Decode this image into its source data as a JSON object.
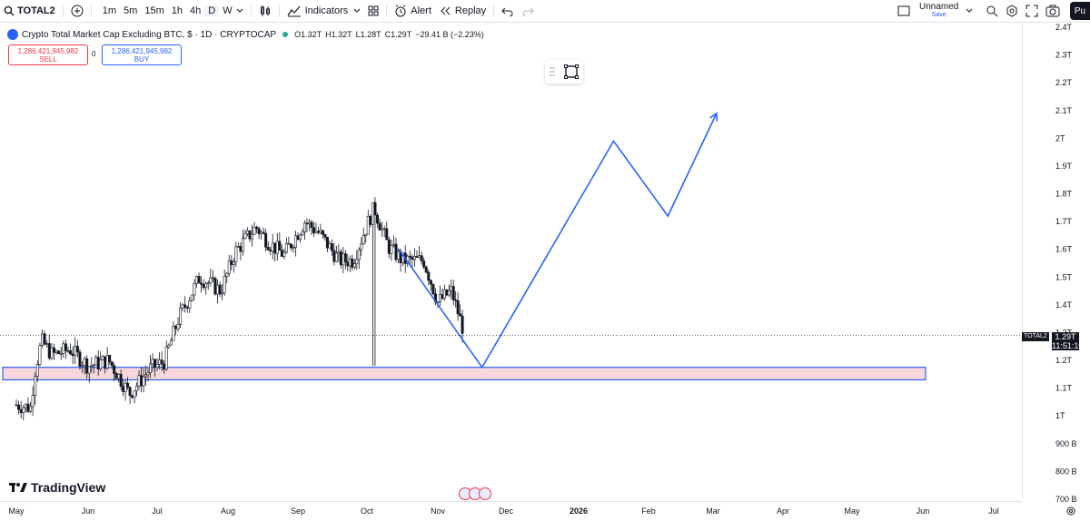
{
  "toolbar": {
    "symbol": "TOTAL2",
    "intervals": [
      "1m",
      "5m",
      "15m",
      "1h",
      "4h",
      "D",
      "W"
    ],
    "active_interval": "D",
    "indicators_label": "Indicators",
    "alert_label": "Alert",
    "replay_label": "Replay",
    "layout_name": "Unnamed",
    "layout_status": "Save",
    "publish_label": "Pu"
  },
  "legend": {
    "title": "Crypto Total Market Cap Excluding BTC, $ · 1D · CRYPTOCAP",
    "open": "O1.32T",
    "high": "H1.32T",
    "low": "L1.28T",
    "close": "C1.29T",
    "change": "−29.41 B (−2.23%)"
  },
  "trade": {
    "sell_price": "1,286,421,945,982",
    "sell_label": "SELL",
    "spread": "0",
    "buy_price": "1,286,421,945,982",
    "buy_label": "BUY"
  },
  "price_axis": {
    "labels": [
      "2.4T",
      "2.3T",
      "2.2T",
      "2.1T",
      "2T",
      "1.9T",
      "1.8T",
      "1.7T",
      "1.6T",
      "1.5T",
      "1.4T",
      "1.3T",
      "1.2T",
      "1.1T",
      "1T",
      "900 B",
      "800 B",
      "700 B"
    ],
    "current_symbol": "TOTAL2",
    "current_price": "1.29T",
    "countdown": "11:51:10"
  },
  "time_axis": {
    "labels": [
      "May",
      "Jun",
      "Jul",
      "Aug",
      "Sep",
      "Oct",
      "Nov",
      "Dec",
      "2026",
      "Feb",
      "Mar",
      "Apr",
      "May",
      "Jun",
      "Jul"
    ]
  },
  "watermark": "TradingView",
  "colors": {
    "up": "#131722",
    "down": "#131722",
    "drawing": "#2962ff",
    "zone_fill": "#f8d7dc",
    "sell": "#f23645",
    "buy": "#2962ff"
  },
  "chart_data": {
    "type": "candlestick",
    "y_axis_unit": "USD (T = trillion, B = billion)",
    "y_range": [
      700,
      2400
    ],
    "series_monthly_approx": {
      "months": [
        "May",
        "Jun",
        "Jul",
        "Aug",
        "Sep",
        "Oct",
        "Nov"
      ],
      "close": [
        1230,
        1180,
        1520,
        1650,
        1720,
        1700,
        1290
      ]
    },
    "current": {
      "close": 1290
    },
    "drawings": {
      "support_zone": {
        "low": 1130,
        "high": 1175,
        "from": "May",
        "to": "Jun"
      },
      "projection_path": [
        {
          "date": "Oct",
          "price": 1600
        },
        {
          "date": "Nov",
          "price": 1175
        },
        {
          "date": "Jan",
          "price": 1990
        },
        {
          "date": "Feb",
          "price": 1720
        },
        {
          "date": "Mar",
          "price": 2090
        }
      ]
    }
  }
}
